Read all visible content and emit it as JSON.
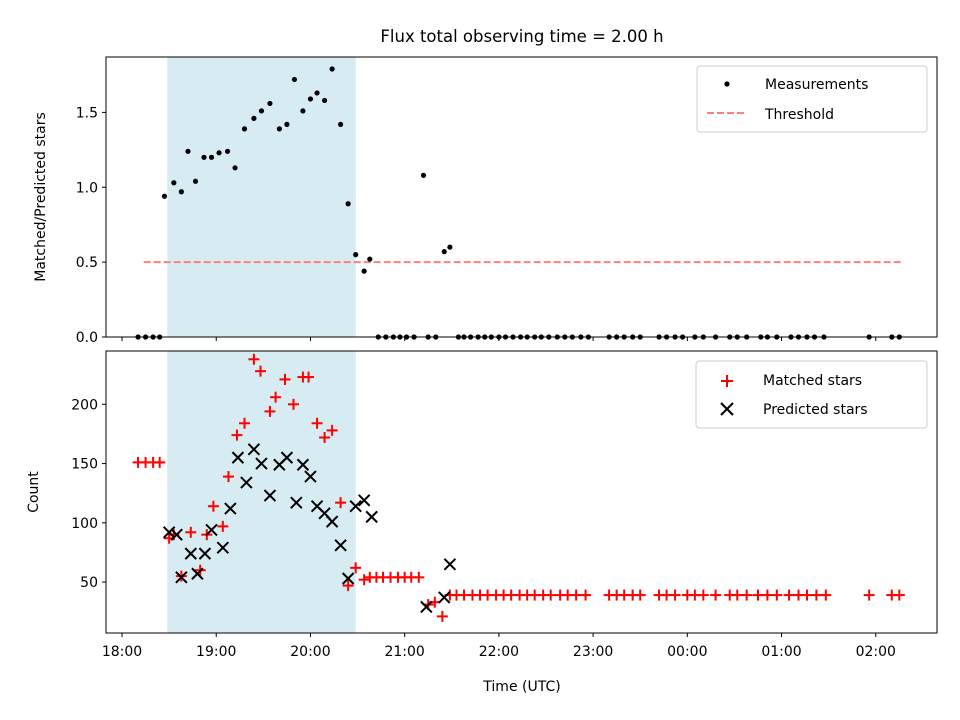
{
  "chart_data": {
    "title": "Flux total observing time = 2.00 h",
    "x_tick_labels": [
      "18:00",
      "19:00",
      "20:00",
      "21:00",
      "22:00",
      "23:00",
      "00:00",
      "01:00",
      "02:00"
    ],
    "x_tick_values_h": [
      18,
      19,
      20,
      21,
      22,
      23,
      24,
      25,
      26
    ],
    "xlabel": "Time (UTC)",
    "xlim_h": [
      17.83,
      26.65
    ],
    "highlight_span_h": [
      18.48,
      20.48
    ],
    "colors": {
      "span": "#add8e6",
      "matched": "#ff0000",
      "predicted": "#000000",
      "threshold": "#ff7f7f",
      "measure": "#000000"
    },
    "panels": [
      {
        "type": "scatter",
        "ylabel": "Matched/Predicted stars",
        "ylim": [
          0,
          1.87
        ],
        "y_ticks": [
          0.0,
          0.5,
          1.0,
          1.5
        ],
        "y_tick_labels": [
          "0.0",
          "0.5",
          "1.0",
          "1.5"
        ],
        "legend": [
          "Measurements",
          "Threshold"
        ],
        "threshold": {
          "value": 0.5,
          "x_range_h": [
            18.23,
            26.27
          ]
        },
        "series": [
          {
            "name": "Measurements",
            "x": [
              18.17,
              18.25,
              18.33,
              18.4,
              18.45,
              18.55,
              18.63,
              18.7,
              18.78,
              18.87,
              18.95,
              19.03,
              19.12,
              19.2,
              19.3,
              19.4,
              19.48,
              19.57,
              19.67,
              19.75,
              19.83,
              19.92,
              20.0,
              20.07,
              20.15,
              20.23,
              20.32,
              20.4,
              20.48,
              20.57,
              20.63,
              20.72,
              20.8,
              20.88,
              20.95,
              21.02,
              21.1,
              21.2,
              21.25,
              21.33,
              21.42,
              21.48,
              21.57,
              21.63,
              21.7,
              21.78,
              21.85,
              21.92,
              22.0,
              22.07,
              22.15,
              22.23,
              22.3,
              22.38,
              22.45,
              22.53,
              22.62,
              22.7,
              22.78,
              22.87,
              22.95,
              23.17,
              23.25,
              23.33,
              23.42,
              23.5,
              23.7,
              23.78,
              23.87,
              23.95,
              24.08,
              24.17,
              24.3,
              24.45,
              24.53,
              24.63,
              24.78,
              24.85,
              24.95,
              25.1,
              25.18,
              25.27,
              25.35,
              25.45,
              25.93,
              26.17,
              26.25
            ],
            "y": [
              0,
              0,
              0,
              0,
              0.94,
              1.03,
              0.97,
              1.24,
              1.04,
              1.2,
              1.2,
              1.23,
              1.24,
              1.13,
              1.39,
              1.46,
              1.51,
              1.56,
              1.39,
              1.42,
              1.72,
              1.51,
              1.59,
              1.63,
              1.58,
              1.79,
              1.42,
              0.89,
              0.55,
              0.44,
              0.52,
              0,
              0,
              0,
              0,
              0,
              0,
              1.08,
              0,
              0,
              0.57,
              0.6,
              0,
              0,
              0,
              0,
              0,
              0,
              0,
              0,
              0,
              0,
              0,
              0,
              0,
              0,
              0,
              0,
              0,
              0,
              0,
              0,
              0,
              0,
              0,
              0,
              0,
              0,
              0,
              0,
              0,
              0,
              0,
              0,
              0,
              0,
              0,
              0,
              0,
              0,
              0,
              0,
              0,
              0,
              0,
              0,
              0
            ]
          }
        ]
      },
      {
        "type": "scatter",
        "ylabel": "Count",
        "ylim": [
          7,
          245
        ],
        "y_ticks": [
          50,
          100,
          150,
          200
        ],
        "y_tick_labels": [
          "50",
          "100",
          "150",
          "200"
        ],
        "legend": [
          "Matched stars",
          "Predicted stars"
        ],
        "series": [
          {
            "name": "Matched stars",
            "x": [
              18.17,
              18.25,
              18.33,
              18.4,
              18.5,
              18.55,
              18.63,
              18.73,
              18.83,
              18.9,
              18.97,
              19.07,
              19.13,
              19.22,
              19.3,
              19.4,
              19.47,
              19.57,
              19.63,
              19.73,
              19.82,
              19.92,
              19.98,
              20.07,
              20.15,
              20.23,
              20.32,
              20.4,
              20.48,
              20.57,
              20.63,
              20.7,
              20.77,
              20.85,
              20.93,
              21.0,
              21.07,
              21.15,
              21.25,
              21.32,
              21.4,
              21.48,
              21.55,
              21.63,
              21.72,
              21.8,
              21.88,
              21.97,
              22.05,
              22.13,
              22.22,
              22.3,
              22.38,
              22.47,
              22.55,
              22.65,
              22.73,
              22.82,
              22.92,
              23.17,
              23.25,
              23.33,
              23.42,
              23.5,
              23.7,
              23.78,
              23.87,
              24.0,
              24.08,
              24.17,
              24.3,
              24.45,
              24.53,
              24.63,
              24.75,
              24.85,
              24.95,
              25.08,
              25.18,
              25.27,
              25.37,
              25.47,
              25.93,
              26.17,
              26.25
            ],
            "y": [
              151,
              151,
              151,
              151,
              87,
              90,
              55,
              92,
              60,
              90,
              114,
              97,
              139,
              174,
              184,
              238,
              228,
              194,
              206,
              221,
              200,
              223,
              223,
              184,
              172,
              178,
              117,
              47,
              62,
              52,
              54,
              54,
              54,
              54,
              54,
              54,
              54,
              54,
              31,
              33,
              21,
              39,
              39,
              39,
              39,
              39,
              39,
              39,
              39,
              39,
              39,
              39,
              39,
              39,
              39,
              39,
              39,
              39,
              39,
              39,
              39,
              39,
              39,
              39,
              39,
              39,
              39,
              39,
              39,
              39,
              39,
              39,
              39,
              39,
              39,
              39,
              39,
              39,
              39,
              39,
              39,
              39,
              39,
              39,
              39
            ]
          },
          {
            "name": "Predicted stars",
            "x": [
              18.5,
              18.58,
              18.63,
              18.73,
              18.8,
              18.88,
              18.95,
              19.07,
              19.15,
              19.23,
              19.32,
              19.4,
              19.48,
              19.57,
              19.67,
              19.75,
              19.85,
              19.92,
              20.0,
              20.07,
              20.15,
              20.23,
              20.32,
              20.4,
              20.48,
              20.57,
              20.65,
              21.23,
              21.42,
              21.48
            ],
            "y": [
              92,
              90,
              54,
              74,
              57,
              74,
              94,
              79,
              112,
              155,
              134,
              162,
              150,
              123,
              149,
              155,
              117,
              149,
              139,
              114,
              108,
              101,
              81,
              53,
              114,
              119,
              105,
              29,
              37,
              65
            ]
          }
        ]
      }
    ]
  }
}
